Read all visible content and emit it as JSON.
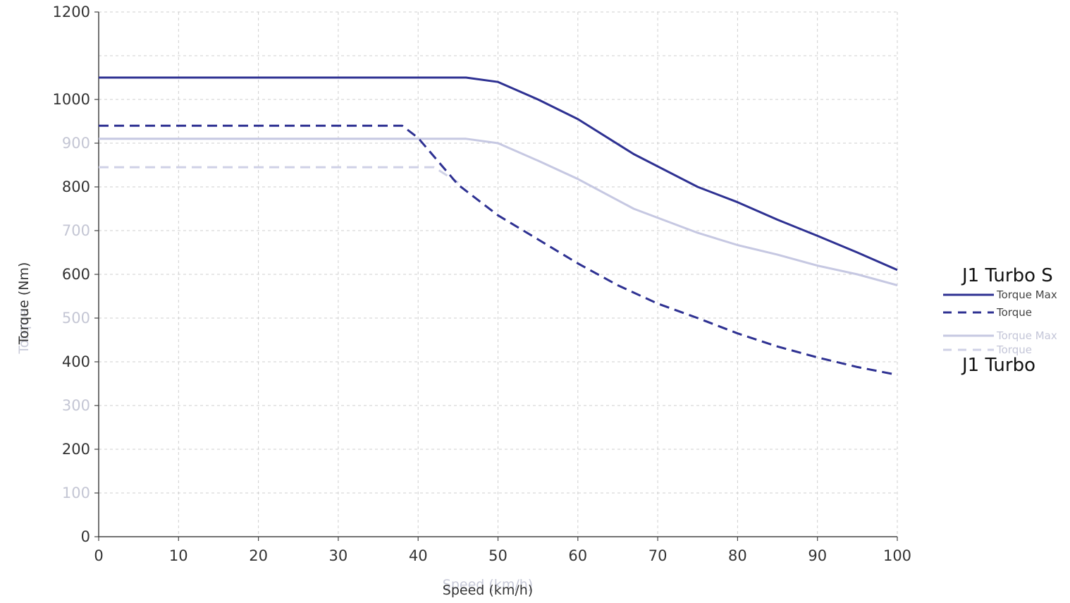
{
  "chart_data": {
    "type": "line",
    "xlabel": "Speed (km/h)",
    "xlabel_faint": "Speed (km/h)",
    "ylabel": "Torque (Nm)",
    "ylabel_faint": "Torque",
    "xlim": [
      0,
      100
    ],
    "ylim": [
      0,
      1200
    ],
    "x_ticks": [
      "0",
      "10",
      "20",
      "30",
      "40",
      "50",
      "60",
      "70",
      "80",
      "90",
      "100"
    ],
    "y_ticks": [
      "0",
      "100",
      "200",
      "300",
      "400",
      "500",
      "600",
      "700",
      "800",
      "900",
      "1000",
      "1200"
    ],
    "y_tick_values": [
      0,
      100,
      200,
      300,
      400,
      500,
      600,
      700,
      800,
      900,
      1000,
      1200
    ],
    "grid": true,
    "legend_placement": "right",
    "series": [
      {
        "group": "J1 Turbo S",
        "name": "Torque Max",
        "color": "#2e3192",
        "style": "solid",
        "points": [
          [
            0,
            1050
          ],
          [
            46,
            1050
          ],
          [
            50,
            1040
          ],
          [
            55,
            1000
          ],
          [
            60,
            955
          ],
          [
            67,
            875
          ],
          [
            75,
            800
          ],
          [
            80,
            765
          ],
          [
            85,
            725
          ],
          [
            90,
            688
          ],
          [
            95,
            650
          ],
          [
            100,
            610
          ]
        ]
      },
      {
        "group": "J1 Turbo S",
        "name": "Torque",
        "color": "#2e3192",
        "style": "dashed",
        "points": [
          [
            0,
            940
          ],
          [
            38,
            940
          ],
          [
            40,
            912
          ],
          [
            45,
            805
          ],
          [
            50,
            735
          ],
          [
            55,
            680
          ],
          [
            60,
            625
          ],
          [
            65,
            575
          ],
          [
            70,
            533
          ],
          [
            75,
            500
          ],
          [
            80,
            465
          ],
          [
            85,
            435
          ],
          [
            90,
            410
          ],
          [
            95,
            388
          ],
          [
            100,
            370
          ]
        ]
      },
      {
        "group": "J1 Turbo",
        "name": "Torque Max",
        "color": "#c6c8e2",
        "style": "solid",
        "points": [
          [
            0,
            910
          ],
          [
            46,
            910
          ],
          [
            50,
            900
          ],
          [
            55,
            860
          ],
          [
            60,
            818
          ],
          [
            67,
            750
          ],
          [
            75,
            695
          ],
          [
            80,
            667
          ],
          [
            85,
            645
          ],
          [
            90,
            620
          ],
          [
            95,
            600
          ],
          [
            100,
            575
          ]
        ]
      },
      {
        "group": "J1 Turbo",
        "name": "Torque",
        "color": "#cfd1e6",
        "style": "dashed",
        "points": [
          [
            0,
            845
          ],
          [
            42,
            845
          ],
          [
            45,
            810
          ]
        ]
      }
    ]
  },
  "legend": {
    "groups": [
      {
        "title": "J1 Turbo S",
        "entries": [
          {
            "label": "Torque Max",
            "color": "#2e3192",
            "style": "solid",
            "text_color": "#444444"
          },
          {
            "label": "Torque",
            "color": "#2e3192",
            "style": "dashed",
            "text_color": "#444444"
          }
        ]
      },
      {
        "title": "J1 Turbo",
        "entries": [
          {
            "label": "Torque Max",
            "color": "#c6c8e2",
            "style": "solid",
            "text_color": "#c4c6d8"
          },
          {
            "label": "Torque",
            "color": "#cfd1e6",
            "style": "dashed",
            "text_color": "#c4c6d8"
          }
        ]
      }
    ]
  },
  "colors": {
    "axis": "#444444",
    "grid": "#cfcfcf",
    "tick_text_dark": "#333333",
    "tick_text_faint": "#c4c6d4"
  }
}
